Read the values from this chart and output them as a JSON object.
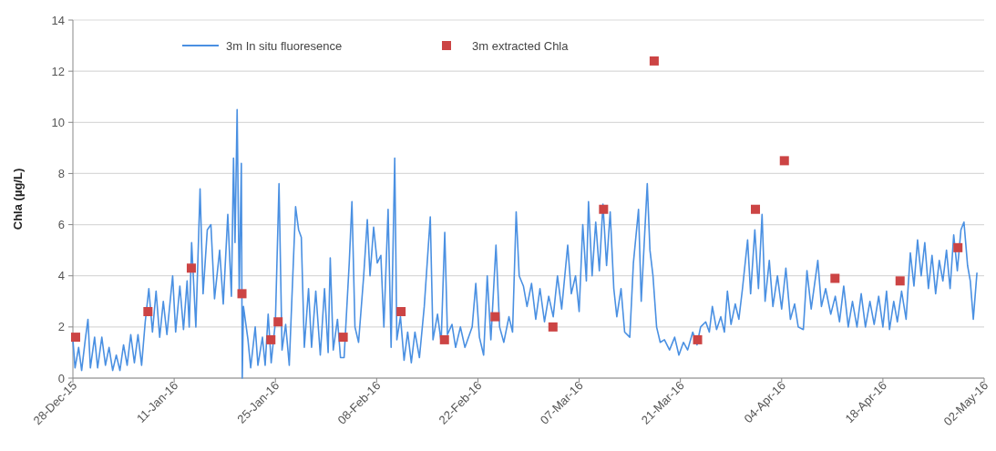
{
  "chart_data": {
    "type": "line",
    "ylabel": "Chla (µg/L)",
    "xlim": [
      "2015-12-28",
      "2016-05-02"
    ],
    "xticks": [
      {
        "value": "2015-12-28",
        "label": "28-Dec-15"
      },
      {
        "value": "2016-01-11",
        "label": "11-Jan-16"
      },
      {
        "value": "2016-01-25",
        "label": "25-Jan-16"
      },
      {
        "value": "2016-02-08",
        "label": "08-Feb-16"
      },
      {
        "value": "2016-02-22",
        "label": "22-Feb-16"
      },
      {
        "value": "2016-03-07",
        "label": "07-Mar-16"
      },
      {
        "value": "2016-03-21",
        "label": "21-Mar-16"
      },
      {
        "value": "2016-04-04",
        "label": "04-Apr-16"
      },
      {
        "value": "2016-04-18",
        "label": "18-Apr-16"
      },
      {
        "value": "2016-05-02",
        "label": "02-May-16"
      }
    ],
    "ylim": [
      0,
      14
    ],
    "yticks": [
      0,
      2,
      4,
      6,
      8,
      10,
      12,
      14
    ],
    "grid": "y",
    "legend": "top",
    "series": [
      {
        "name": "3m In situ fluoresence",
        "color": "#4a90e2",
        "marker": "none",
        "x": [
          "2015-12-28T00:00",
          "2015-12-28T07:00",
          "2015-12-28T19:00",
          "2015-12-29T05:00",
          "2015-12-29T17:00",
          "2015-12-30T02:00",
          "2015-12-30T10:00",
          "2015-12-31T00:00",
          "2015-12-31T10:00",
          "2016-01-01T00:00",
          "2016-01-01T12:00",
          "2016-01-02T00:00",
          "2016-01-02T12:00",
          "2016-01-03T00:00",
          "2016-01-03T12:00",
          "2016-01-04T00:00",
          "2016-01-04T12:00",
          "2016-01-05T00:00",
          "2016-01-05T12:00",
          "2016-01-06T00:00",
          "2016-01-06T12:00",
          "2016-01-07T00:00",
          "2016-01-07T12:00",
          "2016-01-08T00:00",
          "2016-01-08T12:00",
          "2016-01-09T00:00",
          "2016-01-09T12:00",
          "2016-01-10T00:00",
          "2016-01-10T19:00",
          "2016-01-11T05:00",
          "2016-01-11T19:00",
          "2016-01-12T07:00",
          "2016-01-12T19:00",
          "2016-01-13T02:00",
          "2016-01-13T10:00",
          "2016-01-14T00:00",
          "2016-01-14T14:00",
          "2016-01-15T00:00",
          "2016-01-15T14:00",
          "2016-01-16T02:00",
          "2016-01-16T14:00",
          "2016-01-17T07:00",
          "2016-01-17T19:00",
          "2016-01-18T10:00",
          "2016-01-18T22:00",
          "2016-01-19T05:00",
          "2016-01-19T10:00",
          "2016-01-19T17:00",
          "2016-01-20T00:00",
          "2016-01-20T07:00",
          "2016-01-20T10:00",
          "2016-01-20T14:00",
          "2016-01-21T05:00",
          "2016-01-21T14:00",
          "2016-01-22T05:00",
          "2016-01-22T14:00",
          "2016-01-23T05:00",
          "2016-01-23T14:00",
          "2016-01-24T00:00",
          "2016-01-24T10:00",
          "2016-01-25T00:00",
          "2016-01-25T12:00",
          "2016-01-25T22:00",
          "2016-01-26T10:00",
          "2016-01-26T22:00",
          "2016-01-27T07:00",
          "2016-01-27T19:00",
          "2016-01-28T05:00",
          "2016-01-28T14:00",
          "2016-01-29T00:00",
          "2016-01-29T14:00",
          "2016-01-30T00:00",
          "2016-01-30T14:00",
          "2016-01-31T05:00",
          "2016-01-31T19:00",
          "2016-02-01T07:00",
          "2016-02-01T14:00",
          "2016-02-02T00:00",
          "2016-02-02T14:00",
          "2016-02-03T00:00",
          "2016-02-03T12:00",
          "2016-02-04T05:00",
          "2016-02-04T14:00",
          "2016-02-05T00:00",
          "2016-02-05T12:00",
          "2016-02-06T05:00",
          "2016-02-06T17:00",
          "2016-02-07T02:00",
          "2016-02-07T14:00",
          "2016-02-08T02:00",
          "2016-02-08T14:00",
          "2016-02-09T00:00",
          "2016-02-09T14:00",
          "2016-02-10T00:00",
          "2016-02-10T12:00",
          "2016-02-10T19:00",
          "2016-02-11T07:00",
          "2016-02-11T19:00",
          "2016-02-12T07:00",
          "2016-02-12T19:00",
          "2016-02-13T07:00",
          "2016-02-13T22:00",
          "2016-02-14T14:00",
          "2016-02-15T10:00",
          "2016-02-15T19:00",
          "2016-02-16T10:00",
          "2016-02-16T22:00",
          "2016-02-17T10:00",
          "2016-02-17T19:00",
          "2016-02-18T10:00",
          "2016-02-18T22:00",
          "2016-02-19T14:00",
          "2016-02-20T05:00",
          "2016-02-21T05:00",
          "2016-02-21T17:00",
          "2016-02-22T05:00",
          "2016-02-22T19:00",
          "2016-02-23T07:00",
          "2016-02-23T19:00",
          "2016-02-24T12:00",
          "2016-02-25T00:00",
          "2016-02-25T14:00",
          "2016-02-26T07:00",
          "2016-02-26T19:00",
          "2016-02-27T07:00",
          "2016-02-27T17:00",
          "2016-02-28T07:00",
          "2016-02-28T19:00",
          "2016-02-29T10:00",
          "2016-03-01T00:00",
          "2016-03-01T14:00",
          "2016-03-02T05:00",
          "2016-03-02T19:00",
          "2016-03-03T10:00",
          "2016-03-04T00:00",
          "2016-03-04T14:00",
          "2016-03-05T10:00",
          "2016-03-05T22:00",
          "2016-03-06T12:00",
          "2016-03-07T00:00",
          "2016-03-07T12:00",
          "2016-03-08T00:00",
          "2016-03-08T07:00",
          "2016-03-08T19:00",
          "2016-03-09T07:00",
          "2016-03-09T19:00",
          "2016-03-10T07:00",
          "2016-03-10T19:00",
          "2016-03-11T07:00",
          "2016-03-11T19:00",
          "2016-03-12T05:00",
          "2016-03-12T19:00",
          "2016-03-13T07:00",
          "2016-03-14T00:00",
          "2016-03-14T12:00",
          "2016-03-15T05:00",
          "2016-03-15T14:00",
          "2016-03-16T10:00",
          "2016-03-16T19:00",
          "2016-03-17T05:00",
          "2016-03-17T17:00",
          "2016-03-18T05:00",
          "2016-03-18T19:00",
          "2016-03-19T12:00",
          "2016-03-20T05:00",
          "2016-03-20T19:00",
          "2016-03-21T10:00",
          "2016-03-22T00:00",
          "2016-03-22T17:00",
          "2016-03-23T07:00",
          "2016-03-23T19:00",
          "2016-03-24T12:00",
          "2016-03-25T00:00",
          "2016-03-25T10:00",
          "2016-03-26T00:00",
          "2016-03-26T14:00",
          "2016-03-27T02:00",
          "2016-03-27T12:00",
          "2016-03-28T00:00",
          "2016-03-28T14:00",
          "2016-03-29T02:00",
          "2016-03-29T14:00",
          "2016-03-30T07:00",
          "2016-03-30T17:00",
          "2016-03-31T07:00",
          "2016-03-31T19:00",
          "2016-04-01T07:00",
          "2016-04-01T17:00",
          "2016-04-02T07:00",
          "2016-04-02T19:00",
          "2016-04-03T10:00",
          "2016-04-04T00:00",
          "2016-04-04T14:00",
          "2016-04-05T05:00",
          "2016-04-05T19:00",
          "2016-04-06T07:00",
          "2016-04-07T00:00",
          "2016-04-07T12:00",
          "2016-04-08T02:00",
          "2016-04-09T00:00",
          "2016-04-09T12:00",
          "2016-04-10T02:00",
          "2016-04-10T19:00",
          "2016-04-11T10:00",
          "2016-04-12T00:00",
          "2016-04-12T14:00",
          "2016-04-13T05:00",
          "2016-04-13T19:00",
          "2016-04-14T10:00",
          "2016-04-15T00:00",
          "2016-04-15T14:00",
          "2016-04-16T05:00",
          "2016-04-16T19:00",
          "2016-04-17T10:00",
          "2016-04-18T00:00",
          "2016-04-18T12:00",
          "2016-04-18T22:00",
          "2016-04-19T12:00",
          "2016-04-20T00:00",
          "2016-04-20T14:00",
          "2016-04-21T05:00",
          "2016-04-21T19:00",
          "2016-04-22T07:00",
          "2016-04-22T19:00",
          "2016-04-23T07:00",
          "2016-04-23T19:00",
          "2016-04-24T07:00",
          "2016-04-24T19:00",
          "2016-04-25T07:00",
          "2016-04-25T19:00",
          "2016-04-26T07:00",
          "2016-04-26T19:00",
          "2016-04-27T07:00",
          "2016-04-27T19:00",
          "2016-04-28T07:00",
          "2016-04-28T19:00",
          "2016-04-29T05:00",
          "2016-04-29T17:00",
          "2016-04-30T02:00",
          "2016-04-30T12:00",
          "2016-05-01T00:00"
        ],
        "values": [
          1.5,
          0.4,
          1.2,
          0.3,
          1.5,
          2.3,
          0.4,
          1.6,
          0.4,
          1.6,
          0.5,
          1.2,
          0.3,
          0.9,
          0.3,
          1.3,
          0.5,
          1.7,
          0.6,
          1.7,
          0.5,
          2.2,
          3.5,
          1.8,
          3.4,
          1.6,
          3.0,
          1.7,
          4.0,
          1.8,
          3.6,
          1.9,
          3.8,
          2.0,
          5.3,
          2.0,
          7.4,
          3.3,
          5.8,
          6.0,
          3.1,
          5.0,
          2.9,
          6.4,
          3.2,
          8.6,
          5.3,
          10.5,
          3.3,
          8.4,
          0,
          2.8,
          1.5,
          0.4,
          2.0,
          0.5,
          1.6,
          0.5,
          2.5,
          0.6,
          2.2,
          7.6,
          1.1,
          2.1,
          0.5,
          3.2,
          6.7,
          5.8,
          5.5,
          1.2,
          3.5,
          1.2,
          3.4,
          0.9,
          3.5,
          1.0,
          4.7,
          1.1,
          2.3,
          0.8,
          0.8,
          4.5,
          6.9,
          2.0,
          1.4,
          4.0,
          6.2,
          4.0,
          5.9,
          4.5,
          4.8,
          2.0,
          6.6,
          1.2,
          8.6,
          1.5,
          2.4,
          0.7,
          1.8,
          0.6,
          1.8,
          0.8,
          2.8,
          6.3,
          1.5,
          2.5,
          1.4,
          5.7,
          1.7,
          2.1,
          1.2,
          2.0,
          1.2,
          2.0,
          3.7,
          1.6,
          0.9,
          4.0,
          1.5,
          5.2,
          2.0,
          1.4,
          2.4,
          1.8,
          6.5,
          4.0,
          3.6,
          2.8,
          3.7,
          2.3,
          3.5,
          2.2,
          3.2,
          2.4,
          4.0,
          2.7,
          5.2,
          3.3,
          4.0,
          2.6,
          6.0,
          3.8,
          6.9,
          4.0,
          6.1,
          4.2,
          6.8,
          4.4,
          6.5,
          3.5,
          2.4,
          3.5,
          1.8,
          1.6,
          4.5,
          6.6,
          3.0,
          7.6,
          5.0,
          4.0,
          2.0,
          1.4,
          1.5,
          1.1,
          1.6,
          0.9,
          1.4,
          1.1,
          1.8,
          1.3,
          2.0,
          2.2,
          1.8,
          2.8,
          1.9,
          2.4,
          1.8,
          3.4,
          2.1,
          2.9,
          2.3,
          3.5,
          5.4,
          3.3,
          5.8,
          3.5,
          6.4,
          3.0,
          4.6,
          2.8,
          4.0,
          2.7,
          4.3,
          2.3,
          2.9,
          2.0,
          1.9,
          4.2,
          2.7,
          4.6,
          2.8,
          3.5,
          2.5,
          3.2,
          2.2,
          3.6,
          2.0,
          3.0,
          2.0,
          3.3,
          2.0,
          3.0,
          2.1,
          3.2,
          2.0,
          3.4,
          1.9,
          3.0,
          2.2,
          3.4,
          2.3,
          4.9,
          3.6,
          5.4,
          4.0,
          5.3,
          3.5,
          4.8,
          3.3,
          4.6,
          3.8,
          5.0,
          3.5,
          5.6,
          4.2,
          5.8,
          6.1,
          4.4,
          3.8,
          2.3,
          4.1
        ]
      },
      {
        "name": "3m extracted Chla",
        "type": "scatter",
        "color": "#cc4444",
        "marker": "square",
        "x": [
          "2015-12-28T09:00",
          "2016-01-07T09:00",
          "2016-01-13T09:00",
          "2016-01-20T09:00",
          "2016-01-24T09:00",
          "2016-01-25T09:00",
          "2016-02-03T09:00",
          "2016-02-11T09:00",
          "2016-02-17T09:00",
          "2016-02-24T09:00",
          "2016-03-03T09:00",
          "2016-03-10T09:00",
          "2016-03-17T09:00",
          "2016-03-23T09:00",
          "2016-03-31T09:00",
          "2016-04-04T09:00",
          "2016-04-11T09:00",
          "2016-04-20T09:00",
          "2016-04-28T09:00"
        ],
        "values": [
          1.6,
          2.6,
          4.3,
          3.3,
          1.5,
          2.2,
          1.6,
          2.6,
          1.5,
          2.4,
          2.0,
          6.6,
          12.4,
          1.5,
          6.6,
          8.5,
          3.9,
          3.8,
          5.1
        ]
      }
    ]
  }
}
